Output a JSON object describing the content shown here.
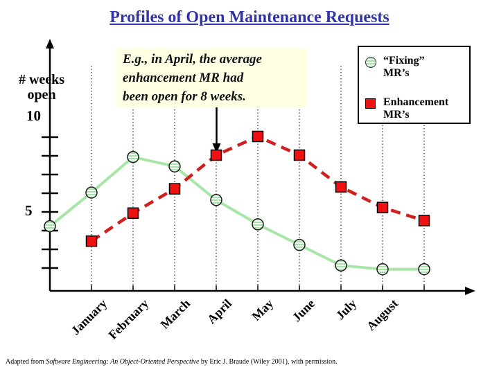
{
  "title": "Profiles of Open Maintenance Requests",
  "y_axis": {
    "label_line1": "# weeks",
    "label_line2": "open",
    "tick_label_top": "10",
    "tick_label_mid": "5"
  },
  "annotation": {
    "lines": [
      "E.g., in April, the average",
      "enhancement MR had",
      "been open for 8 weeks."
    ]
  },
  "legend": {
    "items": [
      {
        "marker": "hatched-green-circle",
        "line1": "“Fixing”",
        "line2": "MR’s"
      },
      {
        "marker": "red-square",
        "line1": "Enhancement",
        "line2": "MR’s"
      }
    ]
  },
  "caption": {
    "prefix": "Adapted from ",
    "book_title": "Software Engineering: An Object-Oriented Perspective",
    "suffix": " by Eric J. Braude (Wiley 2001), with permission."
  },
  "colors": {
    "title_blue": "#3333A8",
    "fixing_line": "#A8E6A8",
    "fixing_marker_fill": "#F2FAF2",
    "fixing_marker_hatch": "#ABDFAB",
    "enhancement_line": "#CF1F1F",
    "enhancement_marker_fill": "#EE1111",
    "annotation_bg": "#FFFFE3",
    "axis_black": "#000000"
  },
  "chart_data": {
    "type": "line",
    "title": "Profiles of Open Maintenance Requests",
    "ylabel": "# weeks open",
    "x_axis_labels": [
      "January",
      "February",
      "March",
      "April",
      "May",
      "June",
      "July",
      "August"
    ],
    "x_scale_note": "month_index 1=January through 8=August; indices 0 and 9 are unlabeled edge points on the drawn curves",
    "y_tick_labels": [
      10,
      5
    ],
    "y_axis_range": [
      0,
      10
    ],
    "grid": "dotted vertical gridlines at each month",
    "legend_position": "top-right box",
    "series": [
      {
        "name": "“Fixing” MR’s",
        "marker": "circle",
        "line_style": "solid",
        "month_index": [
          0,
          1,
          2,
          3,
          4,
          5,
          6,
          7,
          8,
          9
        ],
        "values_weeks": [
          4.2,
          6.0,
          7.9,
          7.4,
          5.6,
          4.3,
          3.2,
          2.1,
          1.9,
          1.9
        ]
      },
      {
        "name": "Enhancement MR’s",
        "marker": "square",
        "line_style": "dashed",
        "month_index": [
          1,
          2,
          3,
          4,
          5,
          6,
          7,
          8,
          9
        ],
        "values_weeks": [
          3.4,
          4.9,
          6.2,
          8.0,
          9.0,
          8.0,
          6.3,
          5.2,
          4.5
        ]
      }
    ],
    "callout": {
      "text": "E.g., in April, the average enhancement MR had been open for 8 weeks.",
      "points_to": {
        "series": "Enhancement MR’s",
        "month": "April",
        "value_weeks": 8
      }
    }
  }
}
